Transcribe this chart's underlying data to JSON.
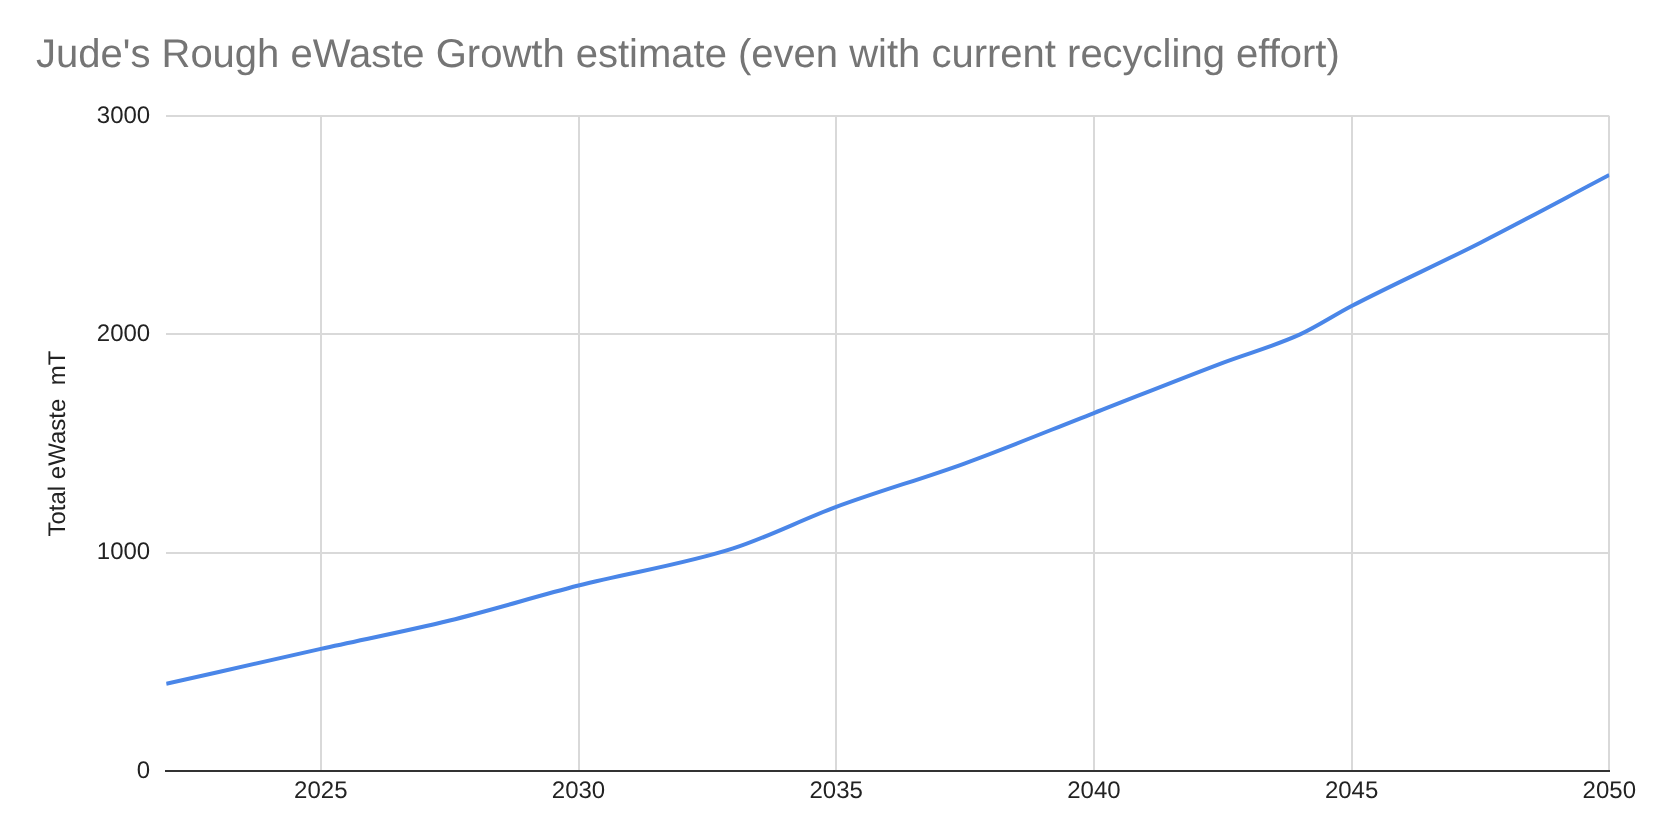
{
  "chart_data": {
    "type": "line",
    "title": "Jude's Rough eWaste Growth estimate (even with current recycling effort)",
    "ylabel": "Total eWaste  mT",
    "x": [
      2022,
      2025,
      2027.5,
      2030,
      2033,
      2035,
      2037.5,
      2040,
      2042.5,
      2044,
      2045,
      2047.5,
      2050
    ],
    "series": [
      {
        "color": "#4a86e8",
        "values": [
          400,
          560,
          690,
          850,
          1020,
          1210,
          1410,
          1640,
          1870,
          2000,
          2130,
          2420,
          2730
        ]
      }
    ],
    "xlim": [
      2022,
      2050
    ],
    "xticks": [
      2025,
      2030,
      2035,
      2040,
      2045,
      2050
    ],
    "ylim": [
      0,
      3000
    ],
    "yticks": [
      0,
      1000,
      2000,
      3000
    ],
    "grid": true,
    "legend": false,
    "marker": "none",
    "line_style": "solid"
  }
}
